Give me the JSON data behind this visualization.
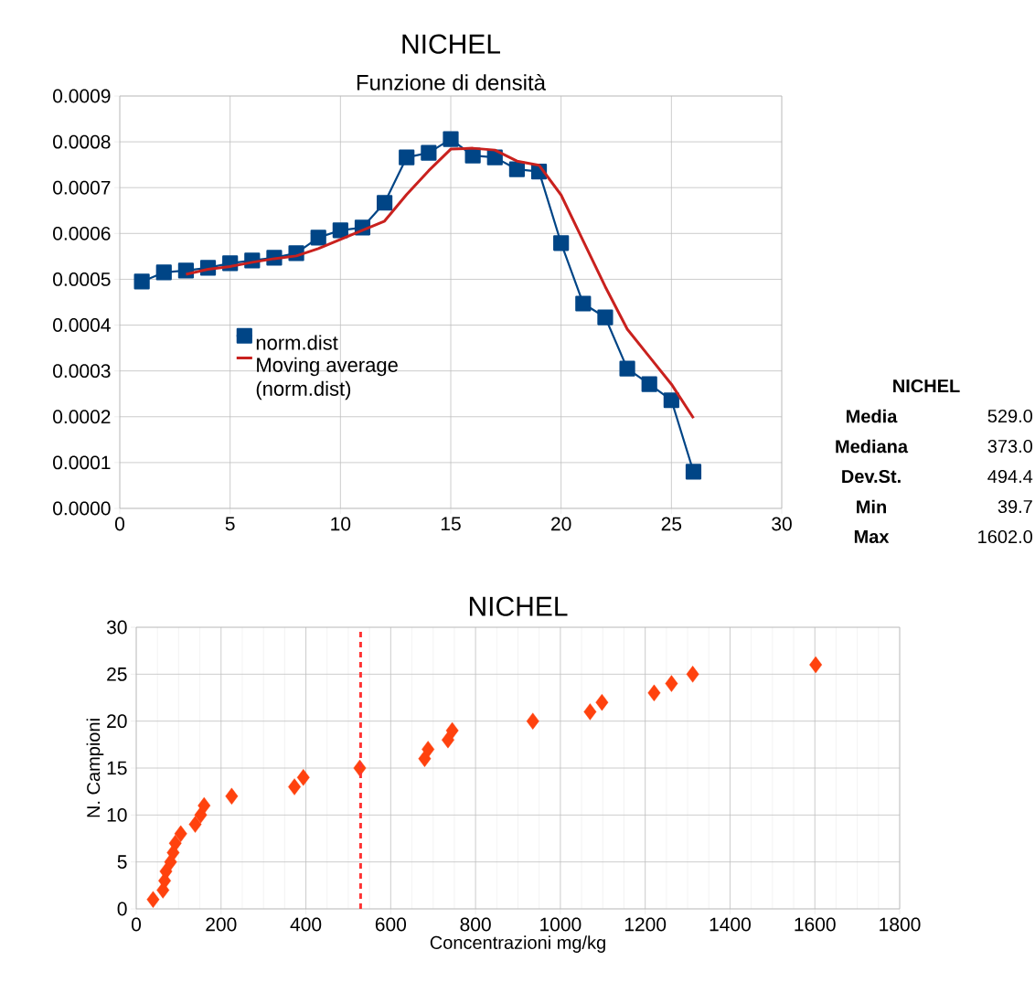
{
  "chart_data": [
    {
      "type": "line",
      "title": "NICHEL",
      "subtitle": "Funzione di densità",
      "xlim": [
        0,
        30
      ],
      "xticks": [
        0,
        5,
        10,
        15,
        20,
        25,
        30
      ],
      "ylim": [
        0,
        0.0009
      ],
      "yticks": [
        {
          "value": 0,
          "label": "0.0000"
        },
        {
          "value": 0.0001,
          "label": "0.0001"
        },
        {
          "value": 0.0002,
          "label": "0.0002"
        },
        {
          "value": 0.0003,
          "label": "0.0003"
        },
        {
          "value": 0.0004,
          "label": "0.0004"
        },
        {
          "value": 0.0005,
          "label": "0.0005"
        },
        {
          "value": 0.0006,
          "label": "0.0006"
        },
        {
          "value": 0.0007,
          "label": "0.0007"
        },
        {
          "value": 0.0008,
          "label": "0.0008"
        },
        {
          "value": 0.0009,
          "label": "0.0009"
        }
      ],
      "grid": true,
      "legend": "center left",
      "series": [
        {
          "name": "norm.dist",
          "color": "#004586",
          "marker": "square",
          "x": [
            1,
            2,
            3,
            4,
            5,
            6,
            7,
            8,
            9,
            10,
            11,
            12,
            13,
            14,
            15,
            16,
            17,
            18,
            19,
            20,
            21,
            22,
            23,
            24,
            25,
            26
          ],
          "values": [
            0.000495,
            0.000515,
            0.000519,
            0.000525,
            0.000535,
            0.000541,
            0.000547,
            0.000557,
            0.000591,
            0.000607,
            0.000613,
            0.000667,
            0.000766,
            0.000776,
            0.000806,
            0.00077,
            0.000766,
            0.00074,
            0.000735,
            0.000579,
            0.000447,
            0.000417,
            0.000305,
            0.000271,
            0.000236,
            8e-05
          ]
        },
        {
          "name": "Moving average (norm.dist)",
          "color": "#c9211e",
          "marker": "none",
          "x": [
            3,
            4,
            5,
            6,
            7,
            8,
            9,
            10,
            11,
            12,
            13,
            14,
            15,
            16,
            17,
            18,
            19,
            20,
            21,
            22,
            23,
            24,
            25,
            26
          ],
          "values": [
            0.000511,
            0.000522,
            0.000528,
            0.000537,
            0.000545,
            0.000551,
            0.000567,
            0.000587,
            0.000607,
            0.000627,
            0.000685,
            0.000737,
            0.000784,
            0.000786,
            0.000782,
            0.000758,
            0.000749,
            0.000684,
            0.000584,
            0.000484,
            0.000391,
            0.000331,
            0.000271,
            0.000197
          ]
        }
      ]
    },
    {
      "type": "other",
      "title": "NICHEL",
      "annotations": [
        "Media",
        "529.0",
        "Mediana",
        "373.0",
        "Dev.St.",
        "494.4",
        "Min",
        "39.7",
        "Max",
        "1602.0"
      ]
    },
    {
      "type": "scatter",
      "title": "NICHEL",
      "xlabel": "Concentrazioni mg/kg",
      "ylabel": "N. Campioni",
      "xlim": [
        0,
        1800
      ],
      "xticks": [
        0,
        200,
        400,
        600,
        800,
        1000,
        1200,
        1400,
        1600,
        1800
      ],
      "ylim": [
        0,
        30
      ],
      "yticks": [
        0,
        5,
        10,
        15,
        20,
        25,
        30
      ],
      "grid": true,
      "marker": "diamond",
      "ref_lines": [
        {
          "axis": "x",
          "value": 529,
          "color": "#ff3333",
          "line_style": "dotted"
        }
      ],
      "series": [
        {
          "color": "#ff420e",
          "x": [
            39.7,
            63,
            67,
            70,
            81,
            87,
            92,
            105,
            139,
            152,
            160,
            225,
            373,
            394,
            527,
            680,
            688,
            735,
            745,
            935,
            1070,
            1098,
            1221,
            1262,
            1312,
            1602
          ],
          "values": [
            1,
            2,
            3,
            4,
            5,
            6,
            7,
            8,
            9,
            10,
            11,
            12,
            13,
            14,
            15,
            16,
            17,
            18,
            19,
            20,
            21,
            22,
            23,
            24,
            25,
            26
          ]
        }
      ]
    }
  ]
}
